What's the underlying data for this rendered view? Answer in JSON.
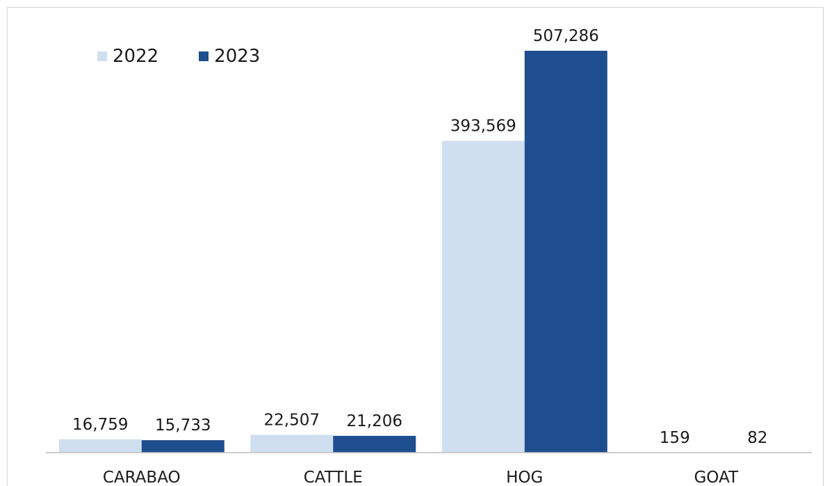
{
  "chart_data": {
    "type": "bar",
    "categories": [
      "CARABAO",
      "CATTLE",
      "HOG",
      "GOAT"
    ],
    "series": [
      {
        "name": "2022",
        "values": [
          16759,
          22507,
          393569,
          159
        ],
        "labels": [
          "16,759",
          "22,507",
          "393,569",
          "159"
        ],
        "color": "#d0dff0"
      },
      {
        "name": "2023",
        "values": [
          15733,
          21206,
          507286,
          82
        ],
        "labels": [
          "15,733",
          "21,206",
          "507,286",
          "82"
        ],
        "color": "#1f4e8f"
      }
    ],
    "ylim": [
      0,
      507286
    ],
    "grid": false,
    "legend_position": "top-left",
    "axis_color": "#bfbfbf",
    "text_color": "#1a1a1a"
  }
}
